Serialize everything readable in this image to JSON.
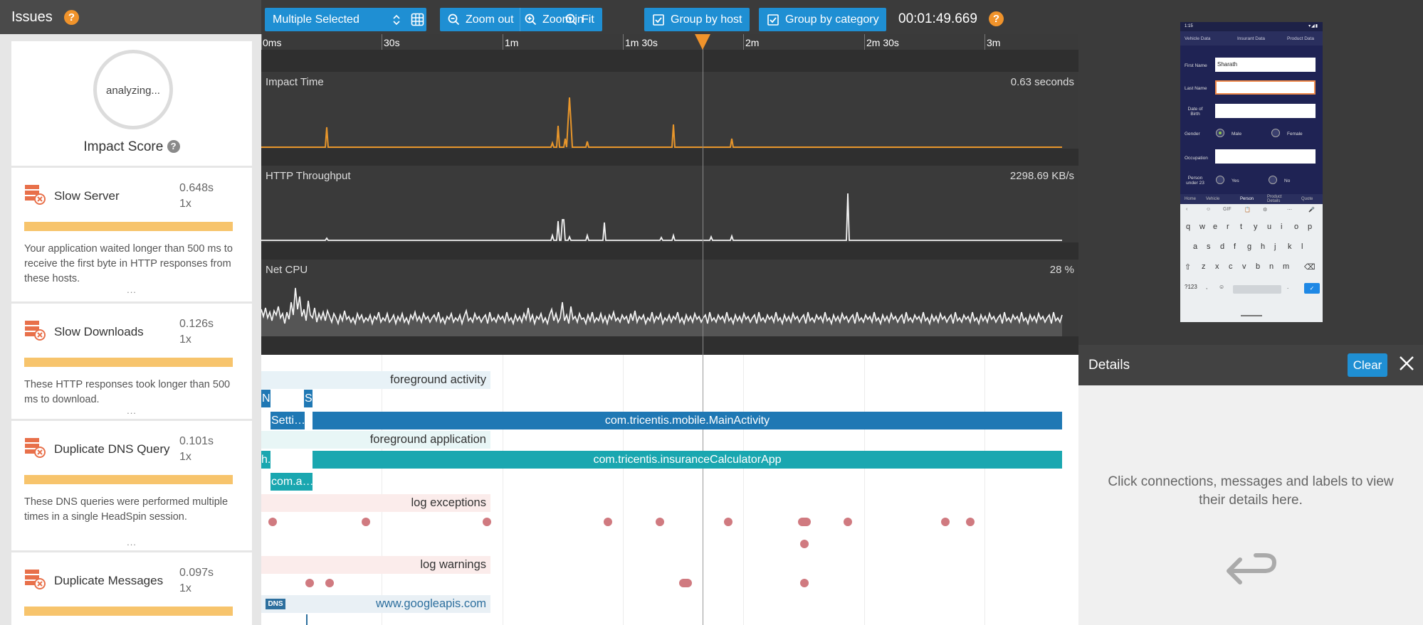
{
  "issues_panel": {
    "title": "Issues",
    "help": "?",
    "score": {
      "status": "analyzing...",
      "label": "Impact Score",
      "help": "?"
    },
    "items": [
      {
        "name": "Slow Server",
        "value": "0.648s",
        "count": "1x",
        "bar_fraction": 1.0,
        "desc": "Your application waited longer than 500 ms to receive the first byte in HTTP responses from these hosts.",
        "more": "..."
      },
      {
        "name": "Slow Downloads",
        "value": "0.126s",
        "count": "1x",
        "bar_fraction": 1.0,
        "desc": "These HTTP responses took longer than 500 ms to download.",
        "more": "..."
      },
      {
        "name": "Duplicate DNS Query",
        "value": "0.101s",
        "count": "1x",
        "bar_fraction": 1.0,
        "desc": "These DNS queries were performed multiple times in a single HeadSpin session.",
        "more": "..."
      },
      {
        "name": "Duplicate Messages",
        "value": "0.097s",
        "count": "1x",
        "bar_fraction": 1.0
      }
    ]
  },
  "toolbar": {
    "select": "Multiple Selected",
    "zoom_out": "Zoom out",
    "zoom_in": "Zoom in",
    "fit": "Fit",
    "group_host": "Group by host",
    "group_category": "Group by category",
    "time": "00:01:49.669",
    "help": "?"
  },
  "timeline": {
    "ticks": [
      "0ms",
      "30s",
      "1m",
      "1m 30s",
      "2m",
      "2m 30s",
      "3m"
    ],
    "tracks": {
      "impact": {
        "label": "Impact Time",
        "value": "0.63 seconds"
      },
      "http": {
        "label": "HTTP Throughput",
        "value": "2298.69 KB/s"
      },
      "cpu": {
        "label": "Net CPU",
        "value": "28 %"
      }
    }
  },
  "lanes": {
    "foreground_activity": "foreground activity",
    "seg_n": "N",
    "seg_s": "S",
    "seg_settings": "Setti…",
    "main_activity": "com.tricentis.mobile.MainActivity",
    "foreground_application": "foreground application",
    "seg_h": "h.",
    "app": "com.tricentis.insuranceCalculatorApp",
    "seg_coma": "com.a…",
    "log_exceptions": "log exceptions",
    "log_warnings": "log warnings",
    "dns_badge": "DNS",
    "dns_host": "www.googleapis.com"
  },
  "details": {
    "title": "Details",
    "clear": "Clear",
    "message": "Click connections, messages and labels to view their details here."
  },
  "phone": {
    "status_time": "1:15",
    "tabs": [
      "Vehicle Data",
      "Insurant Data",
      "Product Data"
    ],
    "fields": {
      "first_name": "First Name",
      "first_name_value": "Sharath",
      "last_name": "Last Name",
      "dob": "Date of Birth",
      "gender": "Gender",
      "male": "Male",
      "female": "Female",
      "occupation": "Occupation",
      "person_under": "Person under 23",
      "yes": "Yes",
      "no": "No"
    },
    "nav": [
      "Home",
      "Vehicle",
      "Person",
      "Product Details",
      "Quote"
    ],
    "kb_toolbar": [
      "‹",
      "☺",
      "GIF",
      "📋",
      "⚙",
      "⋯",
      "🎤"
    ],
    "kb_rows": [
      [
        "q",
        "w",
        "e",
        "r",
        "t",
        "y",
        "u",
        "i",
        "o",
        "p"
      ],
      [
        "a",
        "s",
        "d",
        "f",
        "g",
        "h",
        "j",
        "k",
        "l"
      ],
      [
        "⇧",
        "z",
        "x",
        "c",
        "v",
        "b",
        "n",
        "m",
        "⌫"
      ]
    ],
    "kb_bottom": [
      "?123",
      ",",
      "☺",
      ".",
      "✓"
    ]
  },
  "colors": {
    "accent": "#1f8fd3",
    "orange": "#f0932b",
    "bar_fill": "#f7c46c",
    "lane_dark": "#1f78b4",
    "lane_teal": "#1aa7b0",
    "dot": "#d07a80"
  }
}
